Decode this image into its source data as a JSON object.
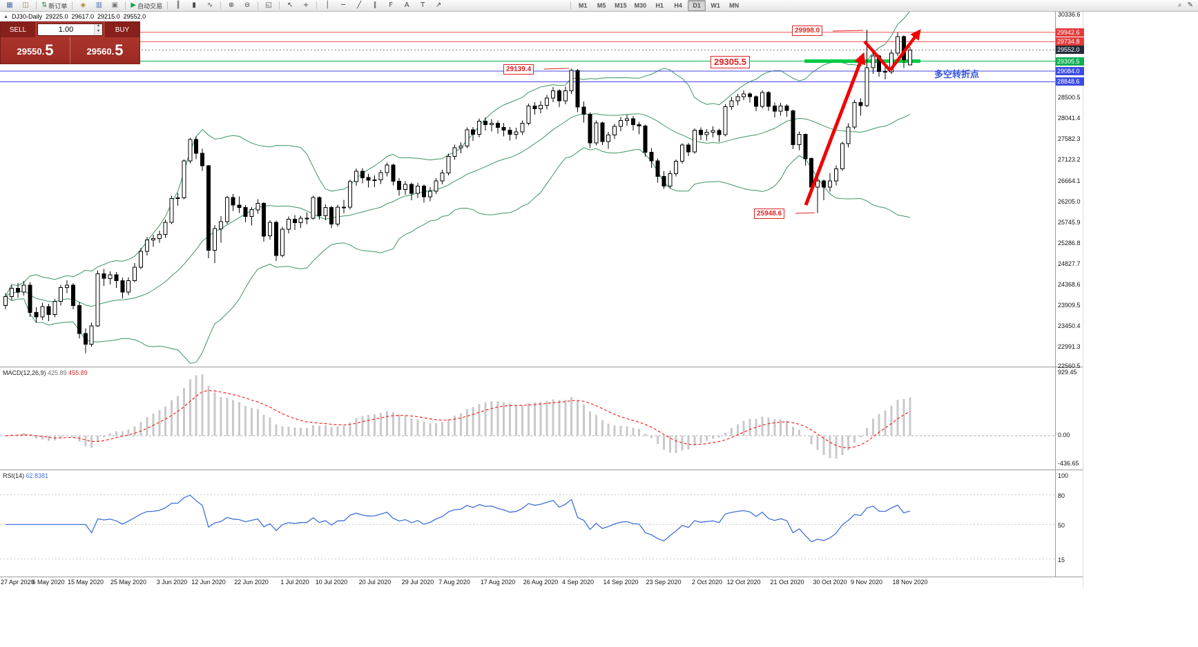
{
  "toolbar": {
    "groups": [
      {
        "items": [
          {
            "name": "new-chart-icon",
            "glyph": "▦",
            "color": "#4a71b5"
          },
          {
            "name": "profiles-icon",
            "glyph": "◫",
            "color": "#9a8142"
          }
        ]
      },
      {
        "items": [
          {
            "name": "new-order-button",
            "glyph": "⇅",
            "color": "#1d8f3c",
            "label": "新订单"
          }
        ]
      },
      {
        "items": [
          {
            "name": "indicators-icon",
            "glyph": "◈",
            "color": "#b08430"
          },
          {
            "name": "market-watch-icon",
            "glyph": "▥",
            "color": "#4a71b5"
          },
          {
            "name": "data-window-icon",
            "glyph": "▣",
            "color": "#777777"
          }
        ]
      },
      {
        "items": [
          {
            "name": "autotrading-button",
            "glyph": "▶",
            "color": "#18a04a",
            "label": "自动交易"
          }
        ]
      },
      {
        "items": [
          {
            "name": "bars-chart-icon",
            "glyph": "║"
          },
          {
            "name": "candlestick-chart-icon",
            "glyph": "▮"
          },
          {
            "name": "line-chart-icon",
            "glyph": "∿"
          }
        ]
      },
      {
        "items": [
          {
            "name": "zoom-in-icon",
            "glyph": "⊕"
          },
          {
            "name": "zoom-out-icon",
            "glyph": "⊖"
          }
        ]
      },
      {
        "items": [
          {
            "name": "tile-windows-icon",
            "glyph": "◱"
          }
        ]
      },
      {
        "items": [
          {
            "name": "cursor-icon",
            "glyph": "↖"
          },
          {
            "name": "crosshair-icon",
            "glyph": "+"
          }
        ]
      },
      {
        "items": [
          {
            "name": "vertical-line-icon",
            "glyph": "│"
          },
          {
            "name": "horizontal-line-icon",
            "glyph": "─"
          },
          {
            "name": "trendline-icon",
            "glyph": "╱"
          },
          {
            "name": "channel-icon",
            "glyph": "∥"
          },
          {
            "name": "fibonacci-icon",
            "glyph": "F"
          },
          {
            "name": "text-icon",
            "glyph": "A"
          },
          {
            "name": "label-icon",
            "glyph": "T"
          },
          {
            "name": "arrow-tool-icon",
            "glyph": "↗"
          }
        ]
      }
    ],
    "timeframes": [
      "M1",
      "M5",
      "M15",
      "M30",
      "H1",
      "H4",
      "D1",
      "W1",
      "MN"
    ],
    "active_timeframe": "D1",
    "right_icons": [
      {
        "name": "search-icon",
        "glyph": "⌕"
      },
      {
        "name": "edit-icon",
        "glyph": "✎"
      }
    ]
  },
  "chart": {
    "title": {
      "collapse_glyph": "▲",
      "symbol": "DJ30-Daily",
      "open": "29225.0",
      "high": "29617.0",
      "low": "29215.0",
      "close": "29552.0"
    },
    "trade_panel": {
      "sell_label": "SELL",
      "buy_label": "BUY",
      "volume": "1.00",
      "sell_price_head": "29550.",
      "sell_price_tail": "5",
      "buy_price_head": "29560.",
      "buy_price_tail": "5"
    },
    "annotations": {
      "spike_high": "29998.0",
      "support_level": "29305.5",
      "september_high": "29139.4",
      "october_low": "25948.6",
      "turning_point_note": "多空转折点"
    },
    "price_axis": {
      "gridlines": [
        "30336.6",
        "28500.5",
        "28041.4",
        "27582.3",
        "27123.2",
        "26664.1",
        "26205.0",
        "25745.9",
        "25286.8",
        "24827.7",
        "24368.6",
        "23909.5",
        "23450.4",
        "22991.3",
        "22560.5"
      ],
      "badges": [
        {
          "value": "29942.6",
          "bg": "#e23b3b"
        },
        {
          "value": "29734.8",
          "bg": "#e23b3b"
        },
        {
          "value": "29552.0",
          "bg": "#242a38"
        },
        {
          "value": "29305.5",
          "bg": "#0faf54"
        },
        {
          "value": "29084.0",
          "bg": "#3b4be2"
        },
        {
          "value": "28848.6",
          "bg": "#3b4be2"
        }
      ]
    }
  },
  "chart_data": {
    "type": "candlestick",
    "symbol": "DJ30",
    "period": "Daily",
    "ohlc_current": {
      "open": 29225.0,
      "high": 29617.0,
      "low": 29215.0,
      "close": 29552.0
    },
    "y_axis_range": [
      22560.5,
      30336.6
    ],
    "last_price": 29552.0,
    "overlays": {
      "bollinger_bands": {
        "period": 20,
        "deviations": 2,
        "color": "#3c9460"
      }
    },
    "horizontal_levels": [
      {
        "value": 29942.6,
        "color": "#f05050"
      },
      {
        "value": 29734.8,
        "color": "#f05050"
      },
      {
        "value": 29305.5,
        "color": "#00b050"
      },
      {
        "value": 29084.0,
        "color": "#4646e0"
      },
      {
        "value": 28848.6,
        "color": "#4646e0"
      }
    ],
    "support_segment": {
      "value": 29305.5
    },
    "indicators": [
      {
        "name": "MACD",
        "params": [
          12,
          26,
          9
        ],
        "current": [
          425.89,
          455.89
        ]
      },
      {
        "name": "RSI",
        "params": [
          14
        ],
        "current": 62.8381,
        "levels": [
          80,
          50,
          15
        ]
      }
    ],
    "x_tick_bars": [
      0,
      7,
      13,
      20,
      27,
      33,
      40,
      47,
      53,
      60,
      67,
      73,
      80,
      87,
      93,
      100,
      107,
      114,
      120,
      127,
      134,
      140,
      147
    ],
    "x_tick_labels": [
      "27 Apr 2020",
      "6 May 2020",
      "15 May 2020",
      "25 May 2020",
      "3 Jun 2020",
      "12 Jun 2020",
      "22 Jun 2020",
      "1 Jul 2020",
      "10 Jul 2020",
      "20 Jul 2020",
      "29 Jul 2020",
      "7 Aug 2020",
      "17 Aug 2020",
      "26 Aug 2020",
      "4 Sep 2020",
      "14 Sep 2020",
      "23 Sep 2020",
      "2 Oct 2020",
      "12 Oct 2020",
      "21 Oct 2020",
      "30 Oct 2020",
      "9 Nov 2020",
      "18 Nov 2020"
    ],
    "candles": [
      [
        23900,
        24180,
        23820,
        24100
      ],
      [
        24100,
        24350,
        24020,
        24280
      ],
      [
        24280,
        24400,
        24080,
        24200
      ],
      [
        24200,
        24440,
        24120,
        24350
      ],
      [
        24350,
        24420,
        23650,
        23750
      ],
      [
        23750,
        23860,
        23520,
        23650
      ],
      [
        23650,
        23960,
        23580,
        23880
      ],
      [
        23880,
        23940,
        23560,
        23700
      ],
      [
        23700,
        24050,
        23640,
        23990
      ],
      [
        23990,
        24360,
        23900,
        24300
      ],
      [
        24300,
        24460,
        24180,
        24350
      ],
      [
        24350,
        24400,
        23820,
        23900
      ],
      [
        23900,
        23980,
        23180,
        23280
      ],
      [
        23280,
        23400,
        22850,
        23050
      ],
      [
        23050,
        23530,
        22990,
        23450
      ],
      [
        23450,
        24680,
        23430,
        24600
      ],
      [
        24600,
        24710,
        24340,
        24500
      ],
      [
        24500,
        24660,
        24370,
        24580
      ],
      [
        24580,
        24640,
        24290,
        24450
      ],
      [
        24450,
        24520,
        24060,
        24200
      ],
      [
        24200,
        24530,
        24130,
        24450
      ],
      [
        24450,
        24840,
        24420,
        24750
      ],
      [
        24750,
        25180,
        24700,
        25100
      ],
      [
        25100,
        25420,
        25010,
        25350
      ],
      [
        25350,
        25470,
        25200,
        25380
      ],
      [
        25380,
        25560,
        25290,
        25475
      ],
      [
        25475,
        25800,
        25400,
        25740
      ],
      [
        25740,
        26330,
        25700,
        26270
      ],
      [
        26270,
        26390,
        26110,
        26280
      ],
      [
        26280,
        27130,
        26250,
        27100
      ],
      [
        27100,
        27610,
        27050,
        27570
      ],
      [
        27570,
        27640,
        27140,
        27270
      ],
      [
        27270,
        27370,
        26880,
        26990
      ],
      [
        26990,
        27010,
        24950,
        25120
      ],
      [
        25120,
        25680,
        24840,
        25600
      ],
      [
        25600,
        25880,
        25290,
        25760
      ],
      [
        25760,
        26330,
        25700,
        26290
      ],
      [
        26290,
        26370,
        25990,
        26120
      ],
      [
        26120,
        26310,
        25950,
        26070
      ],
      [
        26070,
        26120,
        25740,
        25870
      ],
      [
        25870,
        26080,
        25670,
        26020
      ],
      [
        26020,
        26250,
        25930,
        26160
      ],
      [
        26160,
        26190,
        25310,
        25440
      ],
      [
        25440,
        25790,
        25360,
        25740
      ],
      [
        25740,
        25780,
        24890,
        25010
      ],
      [
        25010,
        25640,
        24970,
        25590
      ],
      [
        25590,
        25870,
        25500,
        25810
      ],
      [
        25810,
        25900,
        25570,
        25730
      ],
      [
        25730,
        25890,
        25620,
        25830
      ],
      [
        25830,
        25960,
        25700,
        25830
      ],
      [
        25830,
        26330,
        25800,
        26290
      ],
      [
        26290,
        26310,
        25800,
        25890
      ],
      [
        25890,
        26140,
        25790,
        26070
      ],
      [
        26070,
        26110,
        25610,
        25700
      ],
      [
        25700,
        26130,
        25650,
        26080
      ],
      [
        26080,
        26240,
        25940,
        26080
      ],
      [
        26080,
        26690,
        26020,
        26640
      ],
      [
        26640,
        26930,
        26550,
        26870
      ],
      [
        26870,
        26940,
        26600,
        26730
      ],
      [
        26730,
        26820,
        26510,
        26670
      ],
      [
        26670,
        26780,
        26520,
        26680
      ],
      [
        26680,
        26900,
        26590,
        26840
      ],
      [
        26840,
        27060,
        26760,
        27005
      ],
      [
        27005,
        27040,
        26560,
        26650
      ],
      [
        26650,
        26720,
        26330,
        26470
      ],
      [
        26470,
        26650,
        26350,
        26580
      ],
      [
        26580,
        26620,
        26230,
        26380
      ],
      [
        26380,
        26610,
        26280,
        26540
      ],
      [
        26540,
        26580,
        26180,
        26310
      ],
      [
        26310,
        26520,
        26210,
        26430
      ],
      [
        26430,
        26720,
        26370,
        26660
      ],
      [
        26660,
        26900,
        26580,
        26830
      ],
      [
        26830,
        27260,
        26780,
        27200
      ],
      [
        27200,
        27460,
        27120,
        27390
      ],
      [
        27390,
        27510,
        27270,
        27430
      ],
      [
        27430,
        27840,
        27380,
        27790
      ],
      [
        27790,
        27850,
        27540,
        27690
      ],
      [
        27690,
        28040,
        27620,
        27980
      ],
      [
        27980,
        28060,
        27770,
        27900
      ],
      [
        27900,
        28020,
        27750,
        27930
      ],
      [
        27930,
        27990,
        27700,
        27840
      ],
      [
        27840,
        27940,
        27640,
        27780
      ],
      [
        27780,
        27850,
        27550,
        27690
      ],
      [
        27690,
        27830,
        27580,
        27740
      ],
      [
        27740,
        27990,
        27670,
        27930
      ],
      [
        27930,
        28370,
        27890,
        28310
      ],
      [
        28310,
        28400,
        28120,
        28250
      ],
      [
        28250,
        28420,
        28150,
        28330
      ],
      [
        28330,
        28560,
        28240,
        28490
      ],
      [
        28490,
        28730,
        28400,
        28650
      ],
      [
        28650,
        28690,
        28290,
        28430
      ],
      [
        28430,
        28740,
        28350,
        28650
      ],
      [
        28650,
        29139,
        28580,
        29100
      ],
      [
        29100,
        29130,
        28180,
        28290
      ],
      [
        28290,
        28410,
        27950,
        28130
      ],
      [
        28130,
        28180,
        27380,
        27500
      ],
      [
        27500,
        27990,
        27440,
        27940
      ],
      [
        27940,
        27960,
        27450,
        27530
      ],
      [
        27530,
        27740,
        27370,
        27670
      ],
      [
        27670,
        27920,
        27590,
        27860
      ],
      [
        27860,
        28070,
        27760,
        27990
      ],
      [
        27990,
        28120,
        27880,
        28030
      ],
      [
        28030,
        28090,
        27770,
        27900
      ],
      [
        27900,
        27960,
        27690,
        27870
      ],
      [
        27870,
        27900,
        27190,
        27290
      ],
      [
        27290,
        27380,
        26950,
        27100
      ],
      [
        27100,
        27150,
        26620,
        26760
      ],
      [
        26760,
        26870,
        26480,
        26540
      ],
      [
        26540,
        26890,
        26500,
        26820
      ],
      [
        26820,
        27130,
        26760,
        27090
      ],
      [
        27090,
        27490,
        27040,
        27450
      ],
      [
        27450,
        27500,
        27210,
        27300
      ],
      [
        27300,
        27820,
        27260,
        27780
      ],
      [
        27780,
        27840,
        27560,
        27680
      ],
      [
        27680,
        27800,
        27550,
        27730
      ],
      [
        27730,
        27860,
        27620,
        27770
      ],
      [
        27770,
        27810,
        27520,
        27680
      ],
      [
        27680,
        28350,
        27640,
        28300
      ],
      [
        28300,
        28510,
        28230,
        28430
      ],
      [
        28430,
        28580,
        28330,
        28520
      ],
      [
        28520,
        28660,
        28440,
        28580
      ],
      [
        28580,
        28620,
        28390,
        28520
      ],
      [
        28520,
        28550,
        28200,
        28310
      ],
      [
        28310,
        28660,
        28260,
        28610
      ],
      [
        28610,
        28640,
        28210,
        28310
      ],
      [
        28310,
        28390,
        28060,
        28200
      ],
      [
        28200,
        28380,
        28100,
        28310
      ],
      [
        28310,
        28350,
        28080,
        28210
      ],
      [
        28210,
        28230,
        27360,
        27460
      ],
      [
        27460,
        27750,
        27340,
        27690
      ],
      [
        27690,
        27700,
        26990,
        27150
      ],
      [
        27150,
        27180,
        26400,
        26520
      ],
      [
        26520,
        26710,
        25950,
        26660
      ],
      [
        26660,
        26690,
        26230,
        26520
      ],
      [
        26520,
        26830,
        26420,
        26660
      ],
      [
        26660,
        27000,
        26560,
        26925
      ],
      [
        26925,
        27530,
        26880,
        27480
      ],
      [
        27480,
        27930,
        27400,
        27850
      ],
      [
        27850,
        28450,
        27800,
        28390
      ],
      [
        28390,
        28480,
        28100,
        28320
      ],
      [
        28320,
        29998,
        28290,
        29160
      ],
      [
        29160,
        29480,
        29020,
        29420
      ],
      [
        29420,
        29450,
        28960,
        29080
      ],
      [
        29080,
        29230,
        28900,
        29070
      ],
      [
        29070,
        29540,
        29020,
        29480
      ],
      [
        29480,
        29942,
        29420,
        29850
      ],
      [
        29850,
        29880,
        29150,
        29340
      ],
      [
        29225,
        29617,
        29215,
        29552
      ]
    ]
  },
  "macd_panel": {
    "label": "MACD(12,26,9)",
    "value_main": "425.89",
    "value_signal": "455.89",
    "axis_labels": [
      "929.45",
      "0.00",
      "-436.65"
    ]
  },
  "rsi_panel": {
    "label": "RSI(14)",
    "value": "62.8381",
    "axis_labels": [
      "100",
      "80",
      "50",
      "15"
    ]
  }
}
